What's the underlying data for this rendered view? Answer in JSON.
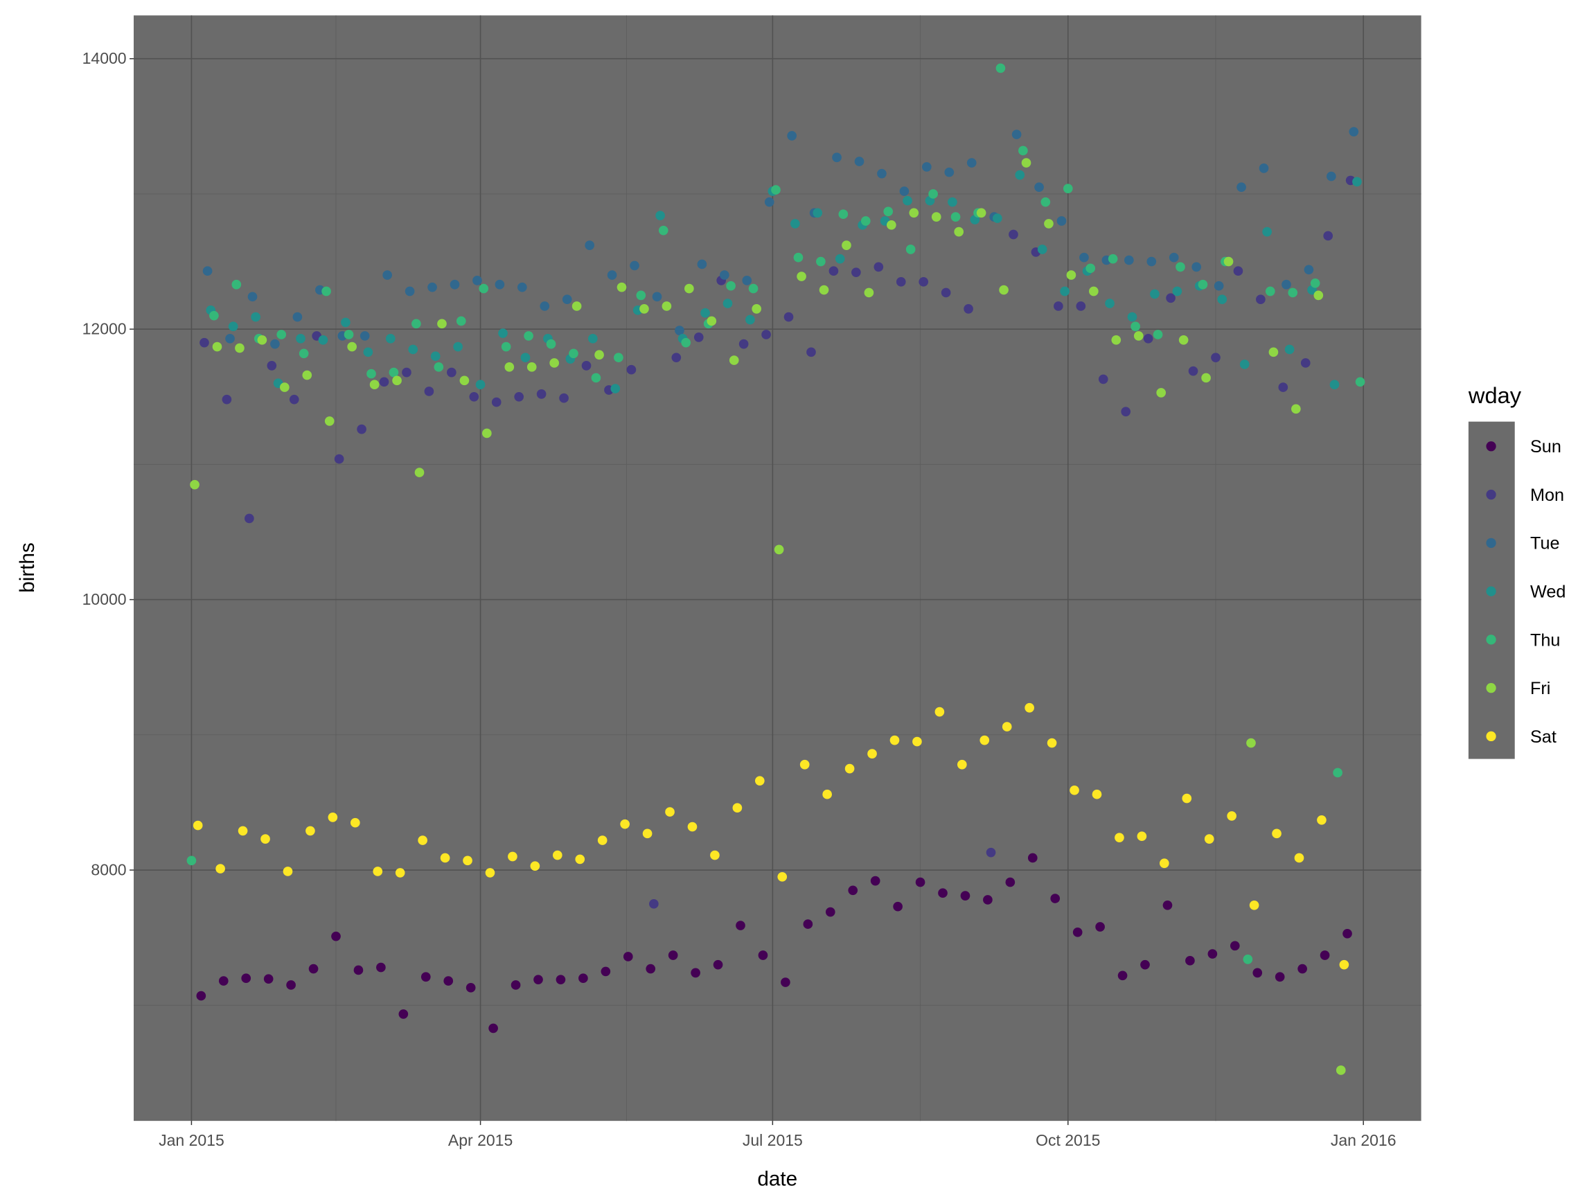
{
  "chart_data": {
    "type": "scatter",
    "title": "",
    "xlabel": "date",
    "ylabel": "births",
    "ylim": [
      6145,
      14320
    ],
    "xlim_days_from_2015_01_01": [
      -18,
      383
    ],
    "x_ticks": [
      {
        "day": 0,
        "label": "Jan 2015"
      },
      {
        "day": 90,
        "label": "Apr 2015"
      },
      {
        "day": 181,
        "label": "Jul 2015"
      },
      {
        "day": 273,
        "label": "Oct 2015"
      },
      {
        "day": 365,
        "label": "Jan 2016"
      }
    ],
    "y_ticks": [
      8000,
      10000,
      12000,
      14000
    ],
    "y_tick_labels": [
      "8000",
      "10000",
      "12000",
      "14000"
    ],
    "grid": true,
    "legend": {
      "title": "wday",
      "placement": "right"
    },
    "x_encoding": "day index from 2015-01-01, one point every 7 days starting at start_day",
    "series": [
      {
        "name": "Sun",
        "color": "#440154",
        "start_day": 3,
        "values": [
          7070,
          7180,
          7200,
          7195,
          7150,
          7270,
          7510,
          7260,
          7280,
          6935,
          7210,
          7180,
          7130,
          6830,
          7150,
          7190,
          7190,
          7200,
          7250,
          7360,
          7270,
          7370,
          7240,
          7300,
          7590,
          7370,
          7170,
          7600,
          7690,
          7850,
          7920,
          7730,
          7910,
          7830,
          7810,
          7780,
          7910,
          8090,
          7790,
          7540,
          7580,
          7220,
          7300,
          7740,
          7330,
          7380,
          7440,
          7240,
          7210,
          7270,
          7370,
          7530
        ]
      },
      {
        "name": "Mon",
        "color": "#443A83",
        "start_day": 4,
        "values": [
          11900,
          11480,
          10600,
          11730,
          11480,
          11950,
          11040,
          11260,
          11610,
          11680,
          11540,
          11680,
          11500,
          11460,
          11500,
          11520,
          11490,
          11730,
          11550,
          11700,
          7750,
          11790,
          11940,
          12360,
          11890,
          11960,
          12090,
          11830,
          12430,
          12420,
          12460,
          12350,
          12350,
          12270,
          12150,
          8130,
          12700,
          12570,
          12170,
          12170,
          11630,
          11390,
          11930,
          12230,
          11690,
          11790,
          12430,
          12220,
          11570,
          11750,
          12690,
          13100
        ]
      },
      {
        "name": "Tue",
        "color": "#31688E",
        "start_day": 5,
        "values": [
          12430,
          11930,
          12240,
          11890,
          12090,
          12290,
          11950,
          11950,
          12400,
          12280,
          12310,
          12330,
          12360,
          12330,
          12310,
          12170,
          12220,
          12620,
          12400,
          12470,
          12240,
          11990,
          12480,
          12400,
          12360,
          12940,
          13430,
          12860,
          13270,
          13240,
          13150,
          13020,
          13200,
          13160,
          13230,
          12830,
          13440,
          13050,
          12800,
          12530,
          12510,
          12510,
          12500,
          12530,
          12460,
          12320,
          13050,
          13190,
          12330,
          12440,
          13130,
          13460
        ]
      },
      {
        "name": "Wed",
        "color": "#21908C",
        "start_day": 6,
        "values": [
          12140,
          12020,
          12090,
          11600,
          11930,
          11920,
          12050,
          11830,
          11930,
          11850,
          11800,
          11870,
          11590,
          11970,
          11790,
          11930,
          11780,
          11930,
          11560,
          12140,
          12840,
          11930,
          12120,
          12190,
          12070,
          13020,
          12780,
          12860,
          12520,
          12770,
          12800,
          12950,
          12950,
          12940,
          12810,
          12820,
          13140,
          12590,
          12280,
          12430,
          12190,
          12090,
          12260,
          12280,
          12320,
          12220,
          11740,
          12720,
          11850,
          12290,
          11590,
          13090
        ]
      },
      {
        "name": "Thu",
        "color": "#35B779",
        "start_day": 0,
        "values": [
          8070,
          12100,
          12330,
          11930,
          11960,
          11820,
          12280,
          11960,
          11670,
          11680,
          12040,
          11720,
          12060,
          12300,
          11870,
          11950,
          11890,
          11820,
          11640,
          11790,
          12250,
          12730,
          11900,
          12040,
          12320,
          12300,
          13030,
          12530,
          12500,
          12850,
          12800,
          12870,
          12590,
          13000,
          12830,
          12860,
          13930,
          13320,
          12940,
          13040,
          12450,
          12520,
          12020,
          11960,
          12460,
          12330,
          12500,
          7340,
          12280,
          12270,
          12340,
          8720,
          11610
        ]
      },
      {
        "name": "Fri",
        "color": "#8FD744",
        "start_day": 1,
        "values": [
          10850,
          11870,
          11860,
          11920,
          11570,
          11660,
          11320,
          11870,
          11590,
          11620,
          10940,
          12040,
          11620,
          11230,
          11720,
          11720,
          11750,
          12170,
          11810,
          12310,
          12150,
          12170,
          12300,
          12060,
          11770,
          12150,
          10370,
          12390,
          12290,
          12620,
          12270,
          12770,
          12860,
          12830,
          12720,
          12860,
          12290,
          13230,
          12780,
          12400,
          12280,
          11920,
          11950,
          11530,
          11920,
          11640,
          12500,
          8940,
          11830,
          11410,
          12250,
          6520
        ]
      },
      {
        "name": "Sat",
        "color": "#FDE725",
        "start_day": 2,
        "values": [
          8330,
          8010,
          8290,
          8230,
          7990,
          8290,
          8390,
          8350,
          7990,
          7980,
          8220,
          8090,
          8070,
          7980,
          8100,
          8030,
          8110,
          8080,
          8220,
          8340,
          8270,
          8430,
          8320,
          8110,
          8460,
          8660,
          7950,
          8780,
          8560,
          8750,
          8860,
          8960,
          8950,
          9170,
          8780,
          8960,
          9060,
          9200,
          8940,
          8590,
          8560,
          8240,
          8250,
          8050,
          8530,
          8230,
          8400,
          7740,
          8270,
          8090,
          8370,
          7300
        ]
      }
    ]
  }
}
